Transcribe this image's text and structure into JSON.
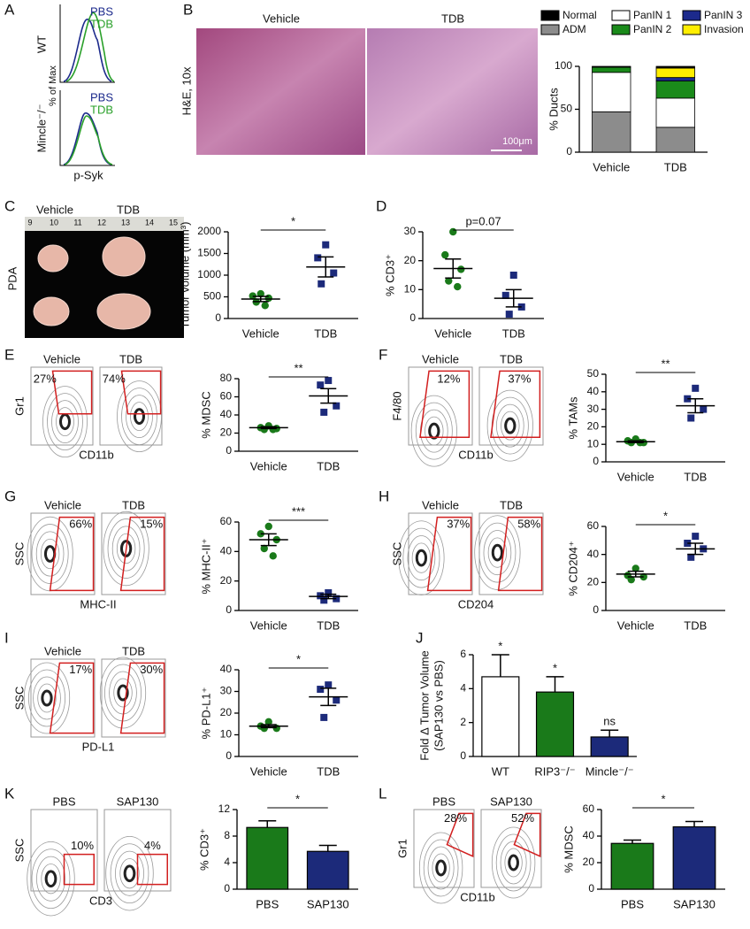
{
  "panel_labels": [
    "A",
    "B",
    "C",
    "D",
    "E",
    "F",
    "G",
    "H",
    "I",
    "J",
    "K",
    "L"
  ],
  "histograms": {
    "legend": [
      "PBS",
      "TDB"
    ],
    "legend_colors": [
      "#1c2a8c",
      "#2aa02a"
    ],
    "rows": [
      "WT",
      "Mincle⁻/⁻"
    ],
    "ylabel": "% of Max",
    "xlabel": "p-Syk"
  },
  "histology": {
    "titles": [
      "Vehicle",
      "TDB"
    ],
    "stain": "H&E, 10x",
    "scale_bar": "100μm"
  },
  "photo": {
    "titles": [
      "Vehicle",
      "TDB"
    ],
    "label": "PDA",
    "ruler": [
      9,
      10,
      11,
      12,
      13,
      14,
      15
    ]
  },
  "flow_plots": [
    {
      "titles": [
        "Vehicle",
        "TDB"
      ],
      "gates": [
        "27%",
        "74%"
      ],
      "ylabel": "Gr1",
      "xlabel": "CD11b"
    },
    {
      "titles": [
        "Vehicle",
        "TDB"
      ],
      "gates": [
        "12%",
        "37%"
      ],
      "ylabel": "F4/80",
      "xlabel": "CD11b"
    },
    {
      "titles": [
        "Vehicle",
        "TDB"
      ],
      "gates": [
        "66%",
        "15%"
      ],
      "ylabel": "SSC",
      "xlabel": "MHC-II"
    },
    {
      "titles": [
        "Vehicle",
        "TDB"
      ],
      "gates": [
        "37%",
        "58%"
      ],
      "ylabel": "SSC",
      "xlabel": "CD204"
    },
    {
      "titles": [
        "Vehicle",
        "TDB"
      ],
      "gates": [
        "17%",
        "30%"
      ],
      "ylabel": "SSC",
      "xlabel": "PD-L1"
    },
    {
      "titles": [
        "PBS",
        "SAP130"
      ],
      "gates": [
        "10%",
        "4%"
      ],
      "ylabel": "SSC",
      "xlabel": "CD3"
    },
    {
      "titles": [
        "PBS",
        "SAP130"
      ],
      "gates": [
        "28%",
        "52%"
      ],
      "ylabel": "Gr1",
      "xlabel": "CD11b"
    }
  ],
  "chart_data": [
    {
      "type": "stacked_bar",
      "ylabel": "% Ducts",
      "categories": [
        "Vehicle",
        "TDB"
      ],
      "ylim": [
        0,
        100
      ],
      "yticks": [
        0,
        50,
        100
      ],
      "series": [
        {
          "name": "Normal",
          "color": "#000000",
          "values": [
            1,
            2
          ]
        },
        {
          "name": "ADM",
          "color": "#8c8c8c",
          "values": [
            47,
            29
          ]
        },
        {
          "name": "PanIN 1",
          "color": "#ffffff",
          "values": [
            46,
            34
          ]
        },
        {
          "name": "PanIN 2",
          "color": "#1a8a1a",
          "values": [
            6,
            20
          ]
        },
        {
          "name": "PanIN 3",
          "color": "#1c2a8c",
          "values": [
            0,
            4
          ]
        },
        {
          "name": "Invasion",
          "color": "#ffee00",
          "values": [
            0,
            11
          ]
        }
      ]
    },
    {
      "type": "dot",
      "ylabel": "Tumor volume (mm³)",
      "categories": [
        "Vehicle",
        "TDB"
      ],
      "ylim": [
        0,
        2000
      ],
      "yticks": [
        0,
        500,
        1000,
        1500,
        2000
      ],
      "annotation": "*",
      "groups": [
        {
          "color": "#1a7a1a",
          "marker": "circle",
          "values": [
            570,
            520,
            470,
            380,
            300
          ],
          "mean": 450,
          "sem": 60
        },
        {
          "color": "#1c2a7a",
          "marker": "square",
          "values": [
            1700,
            1400,
            1050,
            800
          ],
          "mean": 1190,
          "sem": 230
        }
      ]
    },
    {
      "type": "dot",
      "ylabel": "% CD3⁺",
      "categories": [
        "Vehicle",
        "TDB"
      ],
      "ylim": [
        0,
        30
      ],
      "yticks": [
        0,
        10,
        20,
        30
      ],
      "annotation": "p=0.07",
      "groups": [
        {
          "color": "#1a7a1a",
          "marker": "circle",
          "values": [
            30,
            22,
            17,
            13,
            11
          ],
          "mean": 17.3,
          "sem": 3.3
        },
        {
          "color": "#1c2a7a",
          "marker": "square",
          "values": [
            15,
            8,
            4,
            1.5
          ],
          "mean": 7,
          "sem": 3
        }
      ]
    },
    {
      "type": "dot",
      "ylabel": "% MDSC",
      "categories": [
        "Vehicle",
        "TDB"
      ],
      "ylim": [
        0,
        80
      ],
      "yticks": [
        0,
        20,
        40,
        60,
        80
      ],
      "annotation": "**",
      "groups": [
        {
          "color": "#1a7a1a",
          "marker": "circle",
          "values": [
            28,
            26,
            25,
            24,
            24
          ],
          "mean": 26,
          "sem": 1
        },
        {
          "color": "#1c2a7a",
          "marker": "square",
          "values": [
            78,
            73,
            50,
            43
          ],
          "mean": 61,
          "sem": 8
        }
      ]
    },
    {
      "type": "dot",
      "ylabel": "% TAMs",
      "categories": [
        "Vehicle",
        "TDB"
      ],
      "ylim": [
        0,
        50
      ],
      "yticks": [
        0,
        10,
        20,
        30,
        40,
        50
      ],
      "annotation": "**",
      "groups": [
        {
          "color": "#1a7a1a",
          "marker": "circle",
          "values": [
            13,
            12,
            11,
            11,
            11
          ],
          "mean": 11.5,
          "sem": 0.5
        },
        {
          "color": "#1c2a7a",
          "marker": "square",
          "values": [
            42,
            36,
            30,
            25
          ],
          "mean": 32,
          "sem": 4
        }
      ]
    },
    {
      "type": "dot",
      "ylabel": "% MHC-II⁺",
      "categories": [
        "Vehicle",
        "TDB"
      ],
      "ylim": [
        0,
        60
      ],
      "yticks": [
        0,
        20,
        40,
        60
      ],
      "annotation": "***",
      "groups": [
        {
          "color": "#1a7a1a",
          "marker": "circle",
          "values": [
            57,
            52,
            48,
            42,
            37
          ],
          "mean": 48,
          "sem": 4
        },
        {
          "color": "#1c2a7a",
          "marker": "square",
          "values": [
            12,
            10,
            8,
            7
          ],
          "mean": 9.5,
          "sem": 1.5
        }
      ]
    },
    {
      "type": "dot",
      "ylabel": "% CD204⁺",
      "categories": [
        "Vehicle",
        "TDB"
      ],
      "ylim": [
        0,
        60
      ],
      "yticks": [
        0,
        20,
        40,
        60
      ],
      "annotation": "*",
      "groups": [
        {
          "color": "#1a7a1a",
          "marker": "circle",
          "values": [
            30,
            25,
            24,
            22
          ],
          "mean": 26,
          "sem": 2
        },
        {
          "color": "#1c2a7a",
          "marker": "square",
          "values": [
            53,
            48,
            44,
            38
          ],
          "mean": 44,
          "sem": 4
        }
      ]
    },
    {
      "type": "dot",
      "ylabel": "% PD-L1⁺",
      "categories": [
        "Vehicle",
        "TDB"
      ],
      "ylim": [
        0,
        40
      ],
      "yticks": [
        0,
        10,
        20,
        30,
        40
      ],
      "annotation": "*",
      "groups": [
        {
          "color": "#1a7a1a",
          "marker": "circle",
          "values": [
            16,
            14,
            13,
            13
          ],
          "mean": 14,
          "sem": 0.7
        },
        {
          "color": "#1c2a7a",
          "marker": "square",
          "values": [
            33,
            31,
            26,
            18
          ],
          "mean": 27.5,
          "sem": 4
        }
      ]
    },
    {
      "type": "bar",
      "ylabel": [
        "Fold Δ Tumor Volume",
        "(SAP130 vs PBS)"
      ],
      "categories": [
        "WT",
        "RIP3⁻/⁻",
        "Mincle⁻/⁻"
      ],
      "ylim": [
        0,
        6
      ],
      "yticks": [
        0,
        2,
        4,
        6
      ],
      "values": [
        4.7,
        3.8,
        1.15
      ],
      "errors": [
        1.3,
        0.9,
        0.4
      ],
      "colors": [
        "#ffffff",
        "#1a7a1a",
        "#1c2a7a"
      ],
      "annotations": [
        "*",
        "*",
        "ns"
      ]
    },
    {
      "type": "bar",
      "ylabel": "% CD3⁺",
      "categories": [
        "PBS",
        "SAP130"
      ],
      "ylim": [
        0,
        12
      ],
      "yticks": [
        0,
        4,
        8,
        12
      ],
      "values": [
        9.3,
        5.7
      ],
      "errors": [
        1.0,
        0.9
      ],
      "colors": [
        "#1a7a1a",
        "#1c2a7a"
      ],
      "annotation": "*"
    },
    {
      "type": "bar",
      "ylabel": "% MDSC",
      "categories": [
        "PBS",
        "SAP130"
      ],
      "ylim": [
        0,
        60
      ],
      "yticks": [
        0,
        20,
        40,
        60
      ],
      "values": [
        34.5,
        47
      ],
      "errors": [
        2.5,
        4
      ],
      "colors": [
        "#1a7a1a",
        "#1c2a7a"
      ],
      "annotation": "*"
    }
  ]
}
